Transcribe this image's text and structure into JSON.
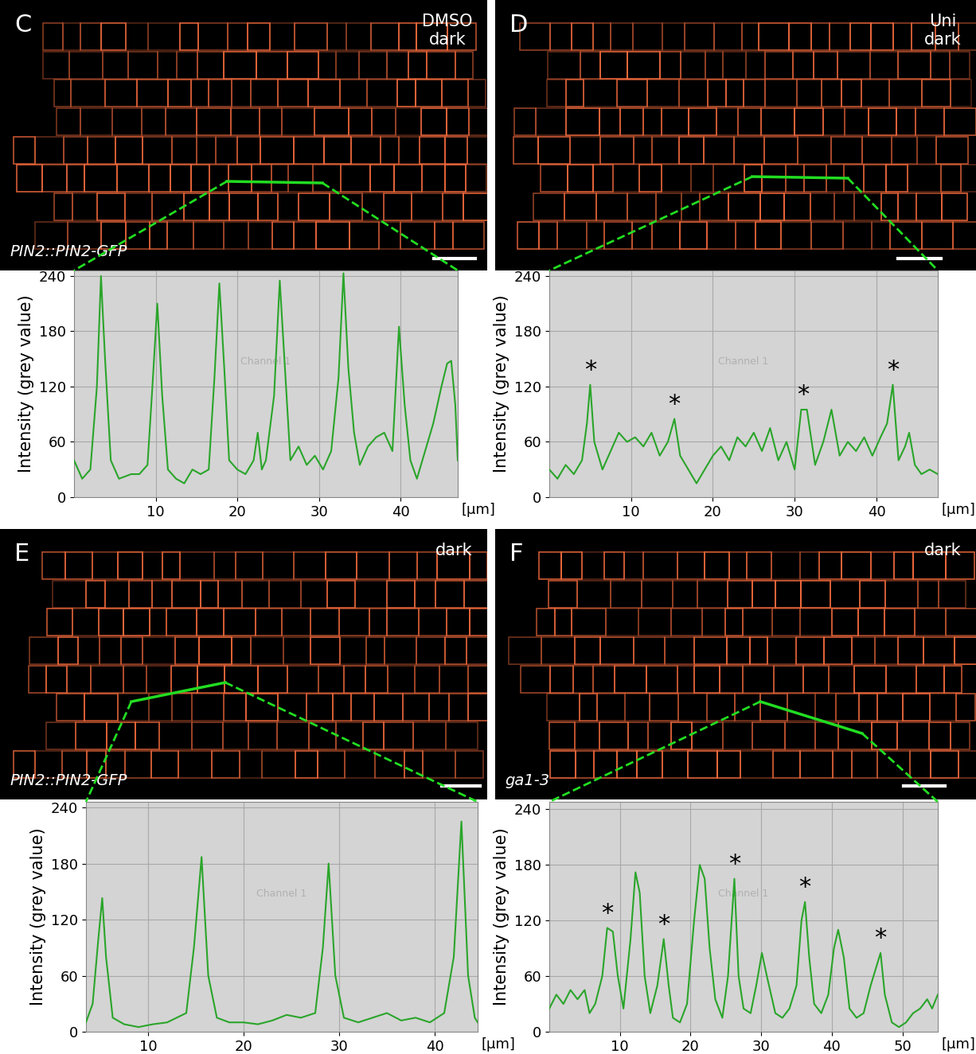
{
  "image_panels": [
    {
      "label": "C",
      "condition": [
        "DMSO",
        "dark"
      ],
      "genotype": "PIN2::PIN2-GFP"
    },
    {
      "label": "D",
      "condition": [
        "Uni",
        "dark"
      ]
    },
    {
      "label": "E",
      "condition": [
        "dark"
      ],
      "genotype": "PIN2::PIN2-GFP"
    },
    {
      "label": "F",
      "condition": [
        "dark"
      ],
      "genotype": "ga1-3"
    }
  ],
  "chart_data": [
    {
      "type": "line",
      "panel": "C",
      "y_label": "Intensity (grey value)",
      "x_label": "[µm]",
      "annotation": "Channel 1",
      "color": "#2aa52a",
      "grid": true,
      "xlim": [
        0,
        47
      ],
      "ylim": [
        0,
        246
      ],
      "xticks": [
        10,
        20,
        30,
        40
      ],
      "yticks": [
        0,
        60,
        120,
        180,
        240
      ],
      "x": [
        0,
        1,
        2,
        2.8,
        3.3,
        3.8,
        4.5,
        5.5,
        7,
        8,
        9,
        9.6,
        10.2,
        10.8,
        11.5,
        12.5,
        13.5,
        14.5,
        15.5,
        16.5,
        17.2,
        17.8,
        18.4,
        19,
        20,
        21,
        22,
        22.5,
        23,
        23.5,
        24.5,
        25.2,
        25.9,
        26.5,
        27.5,
        28.5,
        29.5,
        30.5,
        31.5,
        32.4,
        33,
        33.6,
        34.3,
        35,
        36,
        37,
        38,
        39,
        39.8,
        40.5,
        41.2,
        42,
        43,
        44,
        45,
        45.7,
        46.2,
        46.7,
        47
      ],
      "values": [
        40,
        20,
        30,
        120,
        240,
        150,
        40,
        20,
        25,
        25,
        35,
        120,
        210,
        110,
        30,
        20,
        15,
        30,
        25,
        30,
        130,
        232,
        140,
        40,
        30,
        25,
        40,
        70,
        30,
        40,
        110,
        235,
        130,
        40,
        55,
        35,
        45,
        30,
        50,
        130,
        243,
        140,
        70,
        35,
        55,
        65,
        70,
        50,
        185,
        100,
        40,
        20,
        50,
        80,
        120,
        145,
        148,
        100,
        40
      ],
      "annotations": []
    },
    {
      "type": "line",
      "panel": "D",
      "y_label": "Intensity (grey value)",
      "x_label": "[µm]",
      "annotation": "Channel 1",
      "color": "#2aa52a",
      "grid": true,
      "xlim": [
        0,
        47.5
      ],
      "ylim": [
        0,
        246
      ],
      "xticks": [
        10,
        20,
        30,
        40
      ],
      "yticks": [
        0,
        60,
        120,
        180,
        240
      ],
      "x": [
        0,
        1,
        2,
        3,
        4,
        4.6,
        5,
        5.5,
        6.5,
        7.5,
        8.5,
        9.5,
        10.5,
        11.5,
        12.5,
        13.5,
        14.5,
        15.3,
        16,
        17,
        18,
        19,
        20,
        21,
        22,
        23,
        24,
        25,
        26,
        27,
        28,
        29,
        30,
        30.8,
        31.5,
        32.5,
        33.5,
        34.5,
        35.5,
        36.5,
        37.5,
        38.5,
        39.5,
        40.5,
        41.3,
        42,
        42.7,
        43.5,
        44,
        44.7,
        45.5,
        46.5,
        47.5
      ],
      "values": [
        30,
        20,
        35,
        25,
        40,
        80,
        122,
        60,
        30,
        50,
        70,
        60,
        65,
        55,
        70,
        45,
        60,
        85,
        45,
        30,
        15,
        30,
        45,
        55,
        40,
        65,
        55,
        70,
        50,
        75,
        40,
        60,
        30,
        95,
        95,
        35,
        60,
        95,
        45,
        60,
        50,
        65,
        45,
        65,
        80,
        122,
        40,
        55,
        70,
        35,
        25,
        30,
        25
      ],
      "annotations": [
        {
          "text": "*",
          "x": 5,
          "y": 122
        },
        {
          "text": "*",
          "x": 15.3,
          "y": 85
        },
        {
          "text": "*",
          "x": 31,
          "y": 95
        },
        {
          "text": "*",
          "x": 42,
          "y": 122
        }
      ]
    },
    {
      "type": "line",
      "panel": "E",
      "y_label": "Intensity (grey value)",
      "x_label": "[µm]",
      "annotation": "Channel 1",
      "color": "#2aa52a",
      "grid": true,
      "xlim": [
        3.5,
        44.5
      ],
      "ylim": [
        0,
        246
      ],
      "xticks": [
        10,
        20,
        30,
        40
      ],
      "yticks": [
        0,
        60,
        120,
        180,
        240
      ],
      "x": [
        3.5,
        4.2,
        4.8,
        5.2,
        5.6,
        6.3,
        7.5,
        9,
        10.5,
        12,
        13,
        14,
        14.8,
        15.6,
        16.3,
        17.2,
        18.5,
        20,
        21.5,
        23,
        24.5,
        26,
        27.5,
        28.3,
        28.9,
        29.6,
        30.5,
        32,
        33.5,
        35,
        36.5,
        38,
        39.5,
        41,
        42,
        42.8,
        43.5,
        44.2,
        44.5
      ],
      "values": [
        10,
        30,
        100,
        143,
        80,
        15,
        8,
        5,
        8,
        10,
        15,
        20,
        90,
        187,
        60,
        15,
        10,
        10,
        8,
        12,
        18,
        15,
        20,
        90,
        180,
        60,
        15,
        10,
        15,
        20,
        12,
        15,
        10,
        20,
        80,
        225,
        60,
        15,
        10
      ],
      "annotations": []
    },
    {
      "type": "line",
      "panel": "F",
      "y_label": "Intensity (grey value)",
      "x_label": "[µm]",
      "annotation": "Channel 1",
      "color": "#2aa52a",
      "grid": true,
      "xlim": [
        0,
        55
      ],
      "ylim": [
        0,
        248
      ],
      "xticks": [
        10,
        20,
        30,
        40,
        50
      ],
      "yticks": [
        0,
        60,
        120,
        180,
        240
      ],
      "x": [
        0,
        1,
        2,
        3,
        4,
        5,
        5.7,
        6.5,
        7.5,
        8.2,
        9,
        9.7,
        10.5,
        11.5,
        12.2,
        12.8,
        13.5,
        14.3,
        15.3,
        16.2,
        16.9,
        17.5,
        18.5,
        19.5,
        20.5,
        21.3,
        22,
        22.7,
        23.5,
        24.5,
        25.3,
        26.2,
        26.8,
        27.5,
        28.5,
        29.3,
        30.1,
        30.8,
        32,
        33,
        34,
        35,
        35.7,
        36.2,
        36.8,
        37.5,
        38.5,
        39.5,
        40.3,
        40.9,
        41.7,
        42.5,
        43.5,
        44.5,
        45.5,
        46.3,
        46.9,
        47.5,
        48.5,
        49.5,
        50.5,
        51.5,
        52.5,
        53.5,
        54.2,
        55
      ],
      "values": [
        25,
        40,
        30,
        45,
        35,
        45,
        20,
        30,
        60,
        112,
        108,
        60,
        25,
        100,
        172,
        150,
        60,
        20,
        50,
        100,
        50,
        15,
        10,
        30,
        120,
        180,
        165,
        90,
        35,
        15,
        60,
        165,
        60,
        25,
        20,
        50,
        85,
        60,
        20,
        15,
        25,
        50,
        120,
        140,
        80,
        30,
        20,
        40,
        90,
        110,
        80,
        25,
        15,
        20,
        50,
        70,
        85,
        40,
        10,
        5,
        10,
        20,
        25,
        35,
        25,
        40
      ],
      "annotations": [
        {
          "text": "*",
          "x": 8.2,
          "y": 112
        },
        {
          "text": "*",
          "x": 16.2,
          "y": 100
        },
        {
          "text": "*",
          "x": 26.2,
          "y": 165
        },
        {
          "text": "*",
          "x": 36.2,
          "y": 140
        },
        {
          "text": "*",
          "x": 46.9,
          "y": 85
        }
      ]
    }
  ]
}
